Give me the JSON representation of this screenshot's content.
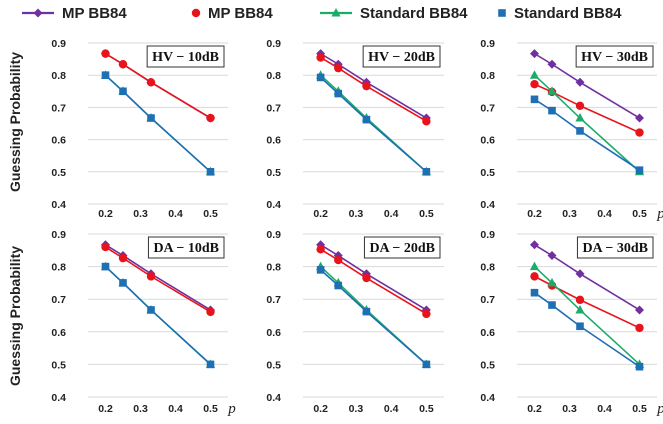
{
  "legend": [
    {
      "label": "MP BB84",
      "color": "#7030a0",
      "marker": "diamond",
      "line": true
    },
    {
      "label": "MP BB84",
      "color": "#e8141b",
      "marker": "circle",
      "line": false
    },
    {
      "label": "Standard BB84",
      "color": "#1aad6a",
      "marker": "triangle",
      "line": true
    },
    {
      "label": "Standard BB84",
      "color": "#1f6fb5",
      "marker": "square",
      "line": false
    }
  ],
  "row_ylabels": [
    "Guessing Probability",
    "Guessing Probability"
  ],
  "chart_data": [
    {
      "type": "line",
      "title": "HV − 10dB",
      "xlabel": "",
      "ylim": [
        0.4,
        0.9
      ],
      "yticks": [
        "0.4",
        "0.5",
        "0.6",
        "0.7",
        "0.8",
        "0.9"
      ],
      "xticks": [
        "0.2",
        "0.3",
        "0.4",
        "0.5"
      ],
      "x": [
        0.2,
        0.25,
        0.33,
        0.5
      ],
      "series": [
        {
          "values": [
            0.867,
            0.834,
            0.778,
            0.667
          ],
          "color": "#7030a0",
          "marker": "diamond",
          "line": true
        },
        {
          "values": [
            0.867,
            0.834,
            0.778,
            0.667
          ],
          "color": "#e8141b",
          "marker": "circle",
          "line": true
        },
        {
          "values": [
            0.8,
            0.75,
            0.667,
            0.5
          ],
          "color": "#1aad6a",
          "marker": "triangle",
          "line": true
        },
        {
          "values": [
            0.8,
            0.75,
            0.667,
            0.5
          ],
          "color": "#1f6fb5",
          "marker": "square",
          "line": true
        }
      ]
    },
    {
      "type": "line",
      "title": "HV − 20dB",
      "xlabel": "",
      "ylim": [
        0.4,
        0.9
      ],
      "yticks": [
        "0.4",
        "0.5",
        "0.6",
        "0.7",
        "0.8",
        "0.9"
      ],
      "xticks": [
        "0.2",
        "0.3",
        "0.4",
        "0.5"
      ],
      "x": [
        0.2,
        0.25,
        0.33,
        0.5
      ],
      "series": [
        {
          "values": [
            0.867,
            0.834,
            0.778,
            0.667
          ],
          "color": "#7030a0",
          "marker": "diamond",
          "line": true
        },
        {
          "values": [
            0.855,
            0.822,
            0.766,
            0.657
          ],
          "color": "#e8141b",
          "marker": "circle",
          "line": true
        },
        {
          "values": [
            0.8,
            0.75,
            0.667,
            0.5
          ],
          "color": "#1aad6a",
          "marker": "triangle",
          "line": true
        },
        {
          "values": [
            0.793,
            0.743,
            0.662,
            0.5
          ],
          "color": "#1f6fb5",
          "marker": "square",
          "line": true
        }
      ]
    },
    {
      "type": "line",
      "title": "HV − 30dB",
      "xlabel": "p",
      "ylim": [
        0.4,
        0.9
      ],
      "yticks": [
        "0.4",
        "0.5",
        "0.6",
        "0.7",
        "0.8",
        "0.9"
      ],
      "xticks": [
        "0.2",
        "0.3",
        "0.4",
        "0.5"
      ],
      "x": [
        0.2,
        0.25,
        0.33,
        0.5
      ],
      "series": [
        {
          "values": [
            0.867,
            0.834,
            0.778,
            0.667
          ],
          "color": "#7030a0",
          "marker": "diamond",
          "line": true
        },
        {
          "values": [
            0.772,
            0.748,
            0.705,
            0.622
          ],
          "color": "#e8141b",
          "marker": "circle",
          "line": true
        },
        {
          "values": [
            0.8,
            0.75,
            0.667,
            0.5
          ],
          "color": "#1aad6a",
          "marker": "triangle",
          "line": true
        },
        {
          "values": [
            0.725,
            0.69,
            0.627,
            0.505
          ],
          "color": "#1f6fb5",
          "marker": "square",
          "line": true
        }
      ]
    },
    {
      "type": "line",
      "title": "DA − 10dB",
      "xlabel": "p",
      "ylim": [
        0.4,
        0.9
      ],
      "yticks": [
        "0.4",
        "0.5",
        "0.6",
        "0.7",
        "0.8",
        "0.9"
      ],
      "xticks": [
        "0.2",
        "0.3",
        "0.4",
        "0.5"
      ],
      "x": [
        0.2,
        0.25,
        0.33,
        0.5
      ],
      "series": [
        {
          "values": [
            0.867,
            0.834,
            0.778,
            0.667
          ],
          "color": "#7030a0",
          "marker": "diamond",
          "line": true
        },
        {
          "values": [
            0.86,
            0.826,
            0.77,
            0.661
          ],
          "color": "#e8141b",
          "marker": "circle",
          "line": true
        },
        {
          "values": [
            0.8,
            0.75,
            0.667,
            0.5
          ],
          "color": "#1aad6a",
          "marker": "triangle",
          "line": true
        },
        {
          "values": [
            0.8,
            0.75,
            0.667,
            0.5
          ],
          "color": "#1f6fb5",
          "marker": "square",
          "line": true
        }
      ]
    },
    {
      "type": "line",
      "title": "DA − 20dB",
      "xlabel": "",
      "ylim": [
        0.4,
        0.9
      ],
      "yticks": [
        "0.4",
        "0.5",
        "0.6",
        "0.7",
        "0.8",
        "0.9"
      ],
      "xticks": [
        "0.2",
        "0.3",
        "0.4",
        "0.5"
      ],
      "x": [
        0.2,
        0.25,
        0.33,
        0.5
      ],
      "series": [
        {
          "values": [
            0.867,
            0.834,
            0.778,
            0.667
          ],
          "color": "#7030a0",
          "marker": "diamond",
          "line": true
        },
        {
          "values": [
            0.853,
            0.82,
            0.765,
            0.655
          ],
          "color": "#e8141b",
          "marker": "circle",
          "line": true
        },
        {
          "values": [
            0.8,
            0.75,
            0.667,
            0.5
          ],
          "color": "#1aad6a",
          "marker": "triangle",
          "line": true
        },
        {
          "values": [
            0.79,
            0.742,
            0.662,
            0.5
          ],
          "color": "#1f6fb5",
          "marker": "square",
          "line": true
        }
      ]
    },
    {
      "type": "line",
      "title": "DA − 30dB",
      "xlabel": "p",
      "ylim": [
        0.4,
        0.9
      ],
      "yticks": [
        "0.4",
        "0.5",
        "0.6",
        "0.7",
        "0.8",
        "0.9"
      ],
      "xticks": [
        "0.2",
        "0.3",
        "0.4",
        "0.5"
      ],
      "x": [
        0.2,
        0.25,
        0.33,
        0.5
      ],
      "series": [
        {
          "values": [
            0.867,
            0.834,
            0.778,
            0.667
          ],
          "color": "#7030a0",
          "marker": "diamond",
          "line": true
        },
        {
          "values": [
            0.77,
            0.742,
            0.698,
            0.612
          ],
          "color": "#e8141b",
          "marker": "circle",
          "line": true
        },
        {
          "values": [
            0.8,
            0.75,
            0.667,
            0.5
          ],
          "color": "#1aad6a",
          "marker": "triangle",
          "line": true
        },
        {
          "values": [
            0.72,
            0.682,
            0.617,
            0.493
          ],
          "color": "#1f6fb5",
          "marker": "square",
          "line": true
        }
      ]
    }
  ]
}
